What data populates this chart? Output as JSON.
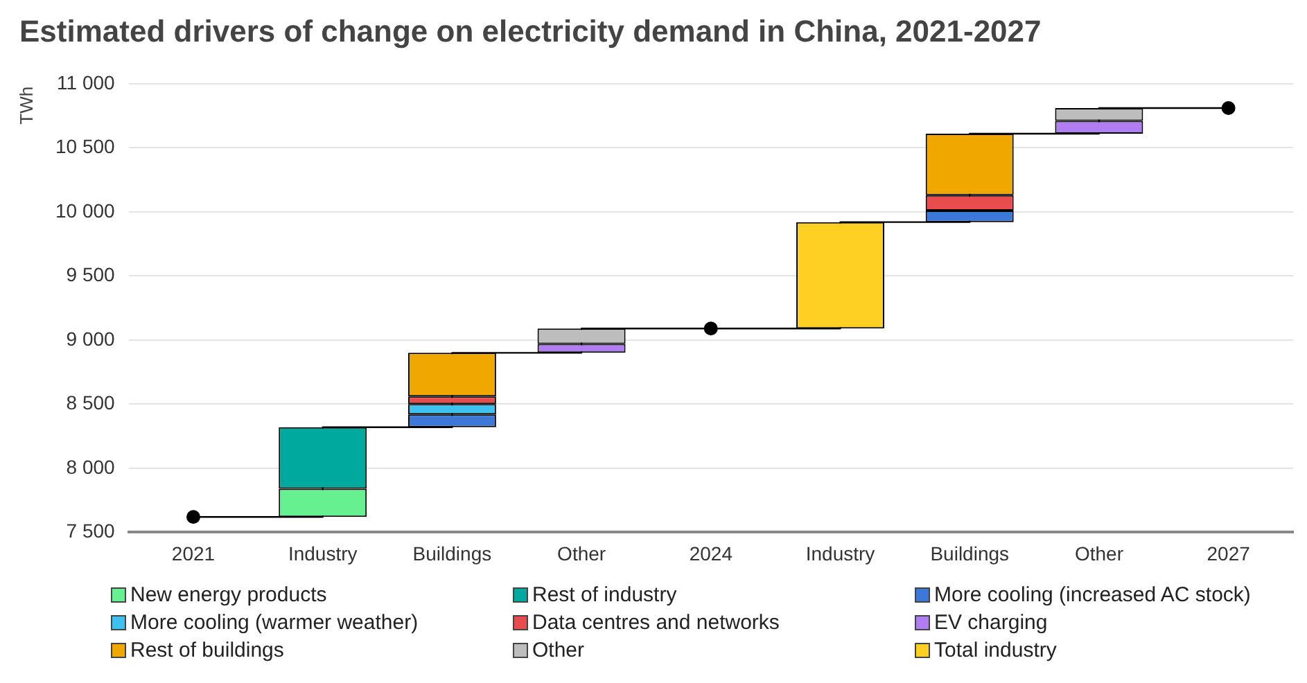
{
  "chart_data": {
    "type": "bar",
    "title": "Estimated drivers of change on electricity demand in China, 2021-2027",
    "ylabel": "TWh",
    "categories": [
      "2021",
      "Industry",
      "Buildings",
      "Other",
      "2024",
      "Industry",
      "Buildings",
      "Other",
      "2027"
    ],
    "series": [
      {
        "type": "step",
        "color": "#000000",
        "marker": "none",
        "values": [
          7620,
          8320,
          8900,
          9090,
          9090,
          9920,
          10610,
          10810,
          10810
        ]
      },
      {
        "name": "New energy products",
        "color": "#66f08f",
        "base": [
          null,
          7620,
          null,
          null,
          null,
          null,
          null,
          null,
          null
        ],
        "values": [
          null,
          220,
          null,
          null,
          null,
          null,
          null,
          null,
          null
        ]
      },
      {
        "name": "Rest of industry",
        "color": "#00a99d",
        "base": [
          null,
          7840,
          null,
          null,
          null,
          null,
          null,
          null,
          null
        ],
        "values": [
          null,
          480,
          null,
          null,
          null,
          null,
          null,
          null,
          null
        ]
      },
      {
        "name": "More cooling (increased AC stock)",
        "color": "#3c78d8",
        "base": [
          null,
          null,
          8320,
          null,
          null,
          null,
          9920,
          null,
          null
        ],
        "values": [
          null,
          null,
          100,
          null,
          null,
          null,
          90,
          null,
          null
        ]
      },
      {
        "name": "More cooling (warmer weather)",
        "color": "#3fc1f0",
        "base": [
          null,
          null,
          8420,
          null,
          null,
          null,
          null,
          null,
          null
        ],
        "values": [
          null,
          null,
          80,
          null,
          null,
          null,
          null,
          null,
          null
        ]
      },
      {
        "name": "Data centres and networks",
        "color": "#e84c4c",
        "base": [
          null,
          null,
          8500,
          null,
          null,
          null,
          10010,
          null,
          null
        ],
        "values": [
          null,
          null,
          60,
          null,
          null,
          null,
          120,
          null,
          null
        ]
      },
      {
        "name": "EV charging",
        "color": "#b07ef0",
        "base": [
          null,
          null,
          null,
          8900,
          null,
          null,
          null,
          10610,
          null
        ],
        "values": [
          null,
          null,
          null,
          70,
          null,
          null,
          null,
          100,
          null
        ]
      },
      {
        "name": "Rest of buildings",
        "color": "#f0a800",
        "base": [
          null,
          null,
          8560,
          null,
          null,
          null,
          10130,
          null,
          null
        ],
        "values": [
          null,
          null,
          340,
          null,
          null,
          null,
          480,
          null,
          null
        ]
      },
      {
        "name": "Other",
        "color": "#bdbdbd",
        "base": [
          null,
          null,
          null,
          8970,
          null,
          null,
          null,
          10710,
          null
        ],
        "values": [
          null,
          null,
          null,
          120,
          null,
          null,
          null,
          100,
          null
        ]
      },
      {
        "name": "Total industry",
        "color": "#fdd023",
        "base": [
          null,
          null,
          null,
          null,
          null,
          9090,
          null,
          null,
          null
        ],
        "values": [
          null,
          null,
          null,
          null,
          null,
          830,
          null,
          null,
          null
        ]
      },
      {
        "type": "scatter",
        "color": "#000000",
        "values": [
          7620,
          null,
          null,
          null,
          9090,
          null,
          null,
          null,
          10810
        ]
      }
    ],
    "ylim": [
      7500,
      11000
    ],
    "yticks": [
      {
        "value": 7500,
        "label": "7 500"
      },
      {
        "value": 8000,
        "label": "8 000"
      },
      {
        "value": 8500,
        "label": "8 500"
      },
      {
        "value": 9000,
        "label": "9 000"
      },
      {
        "value": 9500,
        "label": "9 500"
      },
      {
        "value": 10000,
        "label": "10 000"
      },
      {
        "value": 10500,
        "label": "10 500"
      },
      {
        "value": 11000,
        "label": "11 000"
      }
    ],
    "grid": "y",
    "legend": "bottom",
    "marker": "circle"
  }
}
